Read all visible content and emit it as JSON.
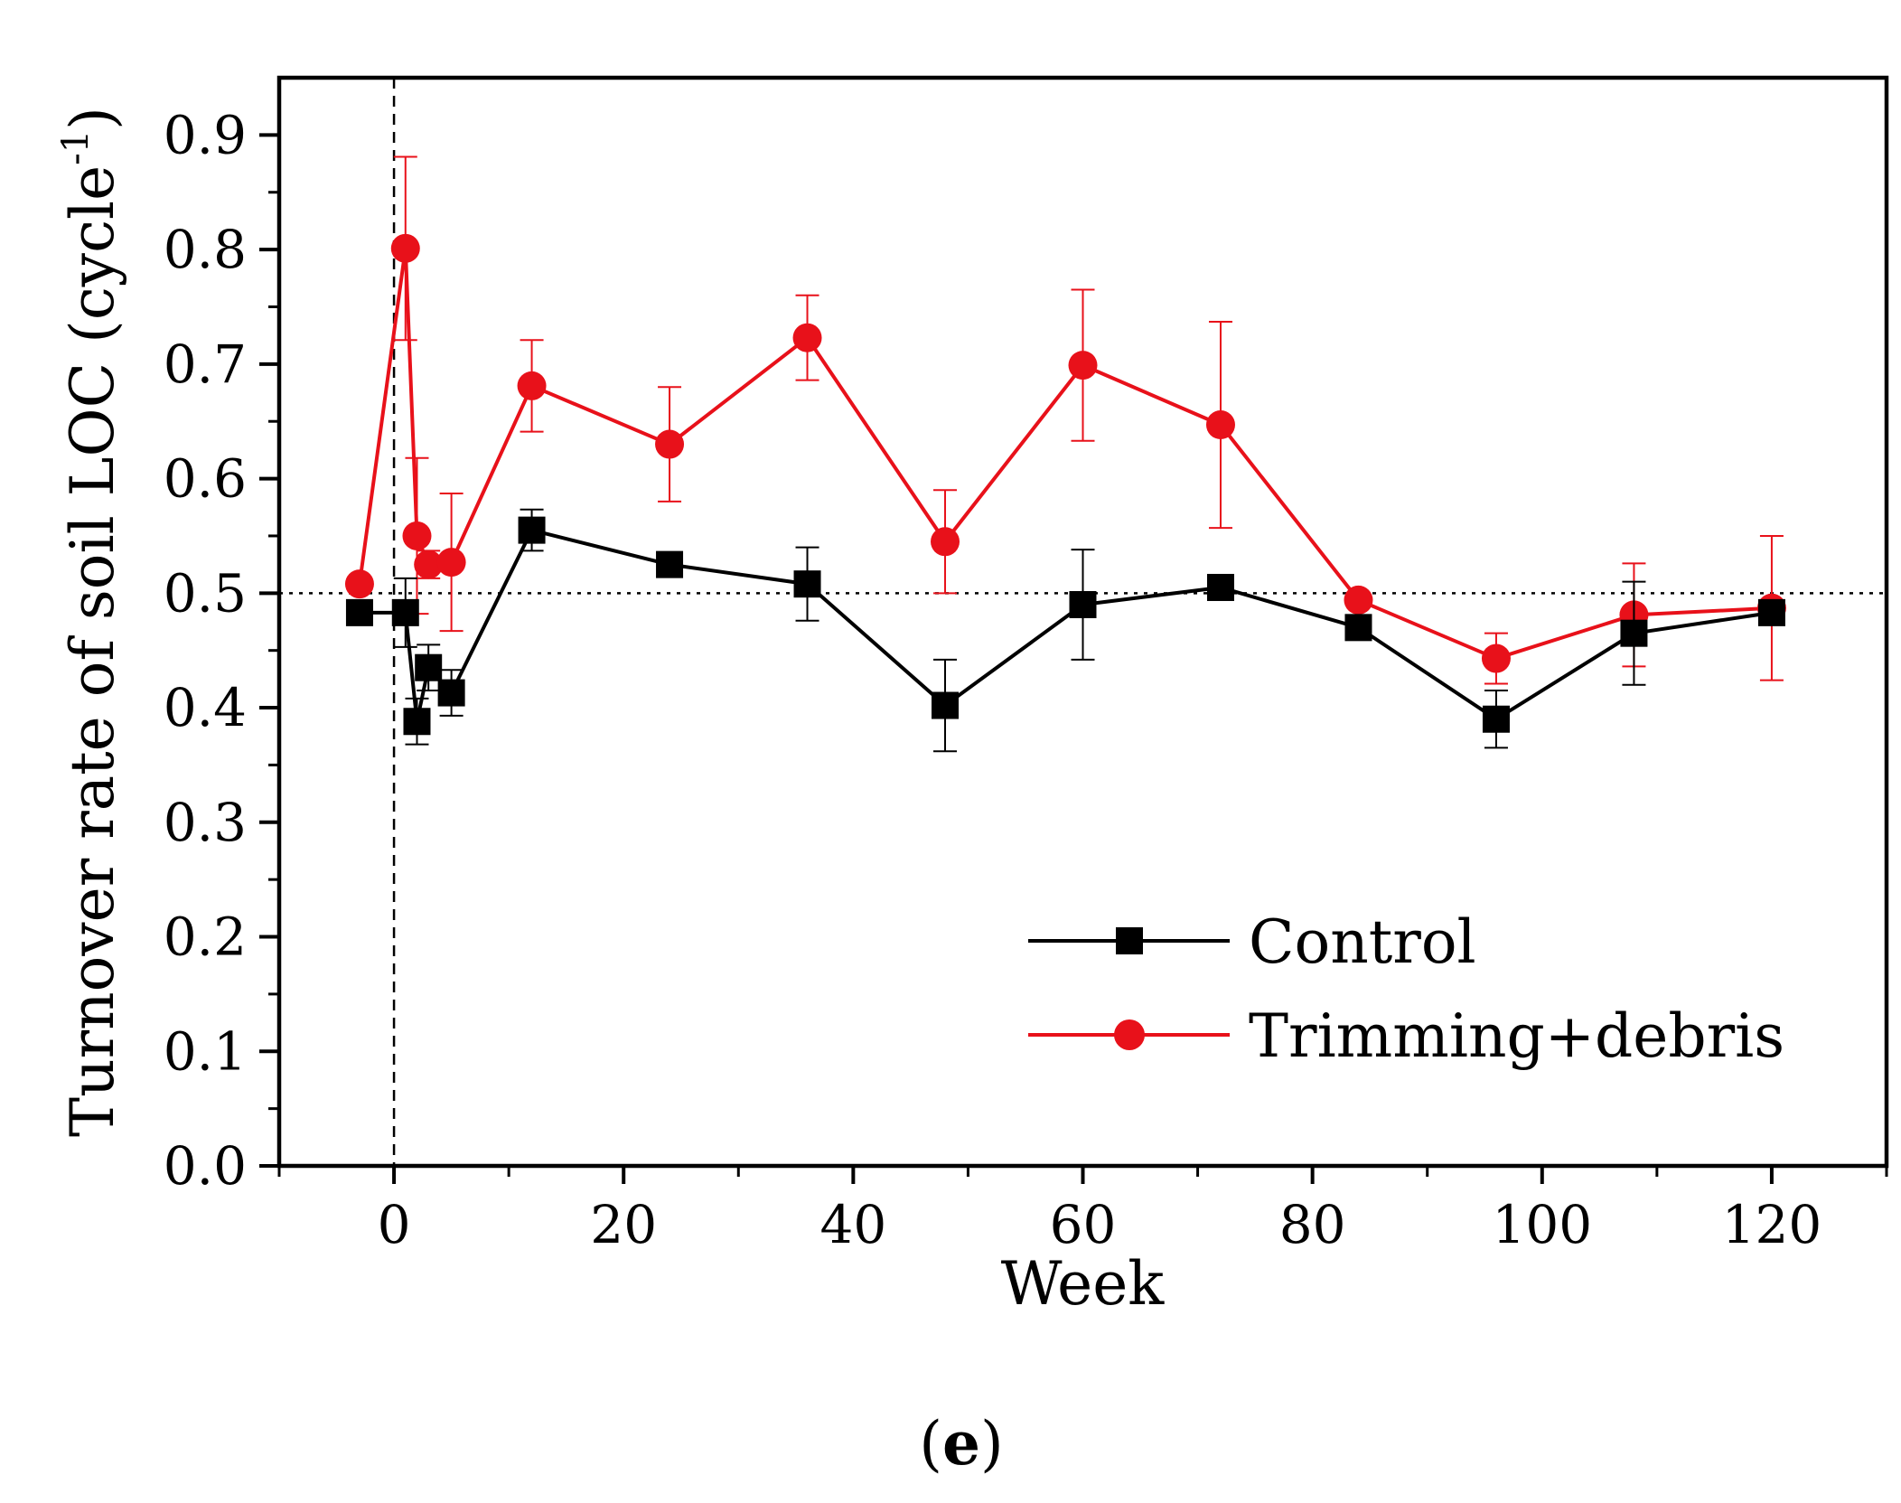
{
  "chart_data": {
    "type": "line",
    "xlabel": "Week",
    "ylabel": "Turnover rate of soil LOC (cycle",
    "ylabel_superscript": "-1",
    "ylabel_close": ")",
    "xlim": [
      -10,
      130
    ],
    "ylim": [
      0.0,
      0.95
    ],
    "xticks": [
      0,
      20,
      40,
      60,
      80,
      100,
      120
    ],
    "xtick_labels": [
      "0",
      "20",
      "40",
      "60",
      "80",
      "100",
      "120"
    ],
    "yticks": [
      0.0,
      0.1,
      0.2,
      0.3,
      0.4,
      0.5,
      0.6,
      0.7,
      0.8,
      0.9
    ],
    "ytick_labels": [
      "0.0",
      "0.1",
      "0.2",
      "0.3",
      "0.4",
      "0.5",
      "0.6",
      "0.7",
      "0.8",
      "0.9"
    ],
    "reference_lines": {
      "vertical_x": 0,
      "horizontal_y": 0.5
    },
    "legend_position": "bottom-right",
    "grid": false,
    "series": [
      {
        "name": "Control",
        "color": "#000000",
        "marker": "square",
        "x": [
          -3,
          1,
          2,
          3,
          5,
          12,
          24,
          36,
          48,
          60,
          72,
          84,
          96,
          108,
          120
        ],
        "y": [
          0.483,
          0.483,
          0.388,
          0.435,
          0.413,
          0.555,
          0.525,
          0.508,
          0.402,
          0.49,
          0.505,
          0.47,
          0.39,
          0.465,
          0.483
        ],
        "err": [
          0.008,
          0.03,
          0.02,
          0.02,
          0.02,
          0.018,
          0.01,
          0.032,
          0.04,
          0.048,
          0.006,
          0.008,
          0.025,
          0.045,
          0.004
        ]
      },
      {
        "name": "Trimming+debris",
        "color": "#e8111a",
        "marker": "circle",
        "x": [
          -3,
          1,
          2,
          3,
          5,
          12,
          24,
          36,
          48,
          60,
          72,
          84,
          96,
          108,
          120
        ],
        "y": [
          0.508,
          0.801,
          0.55,
          0.525,
          0.527,
          0.681,
          0.63,
          0.723,
          0.545,
          0.699,
          0.647,
          0.494,
          0.443,
          0.481,
          0.487
        ],
        "err": [
          0.005,
          0.08,
          0.068,
          0.012,
          0.06,
          0.04,
          0.05,
          0.037,
          0.045,
          0.066,
          0.09,
          0.005,
          0.022,
          0.045,
          0.063
        ]
      }
    ]
  },
  "panel_label": "e"
}
